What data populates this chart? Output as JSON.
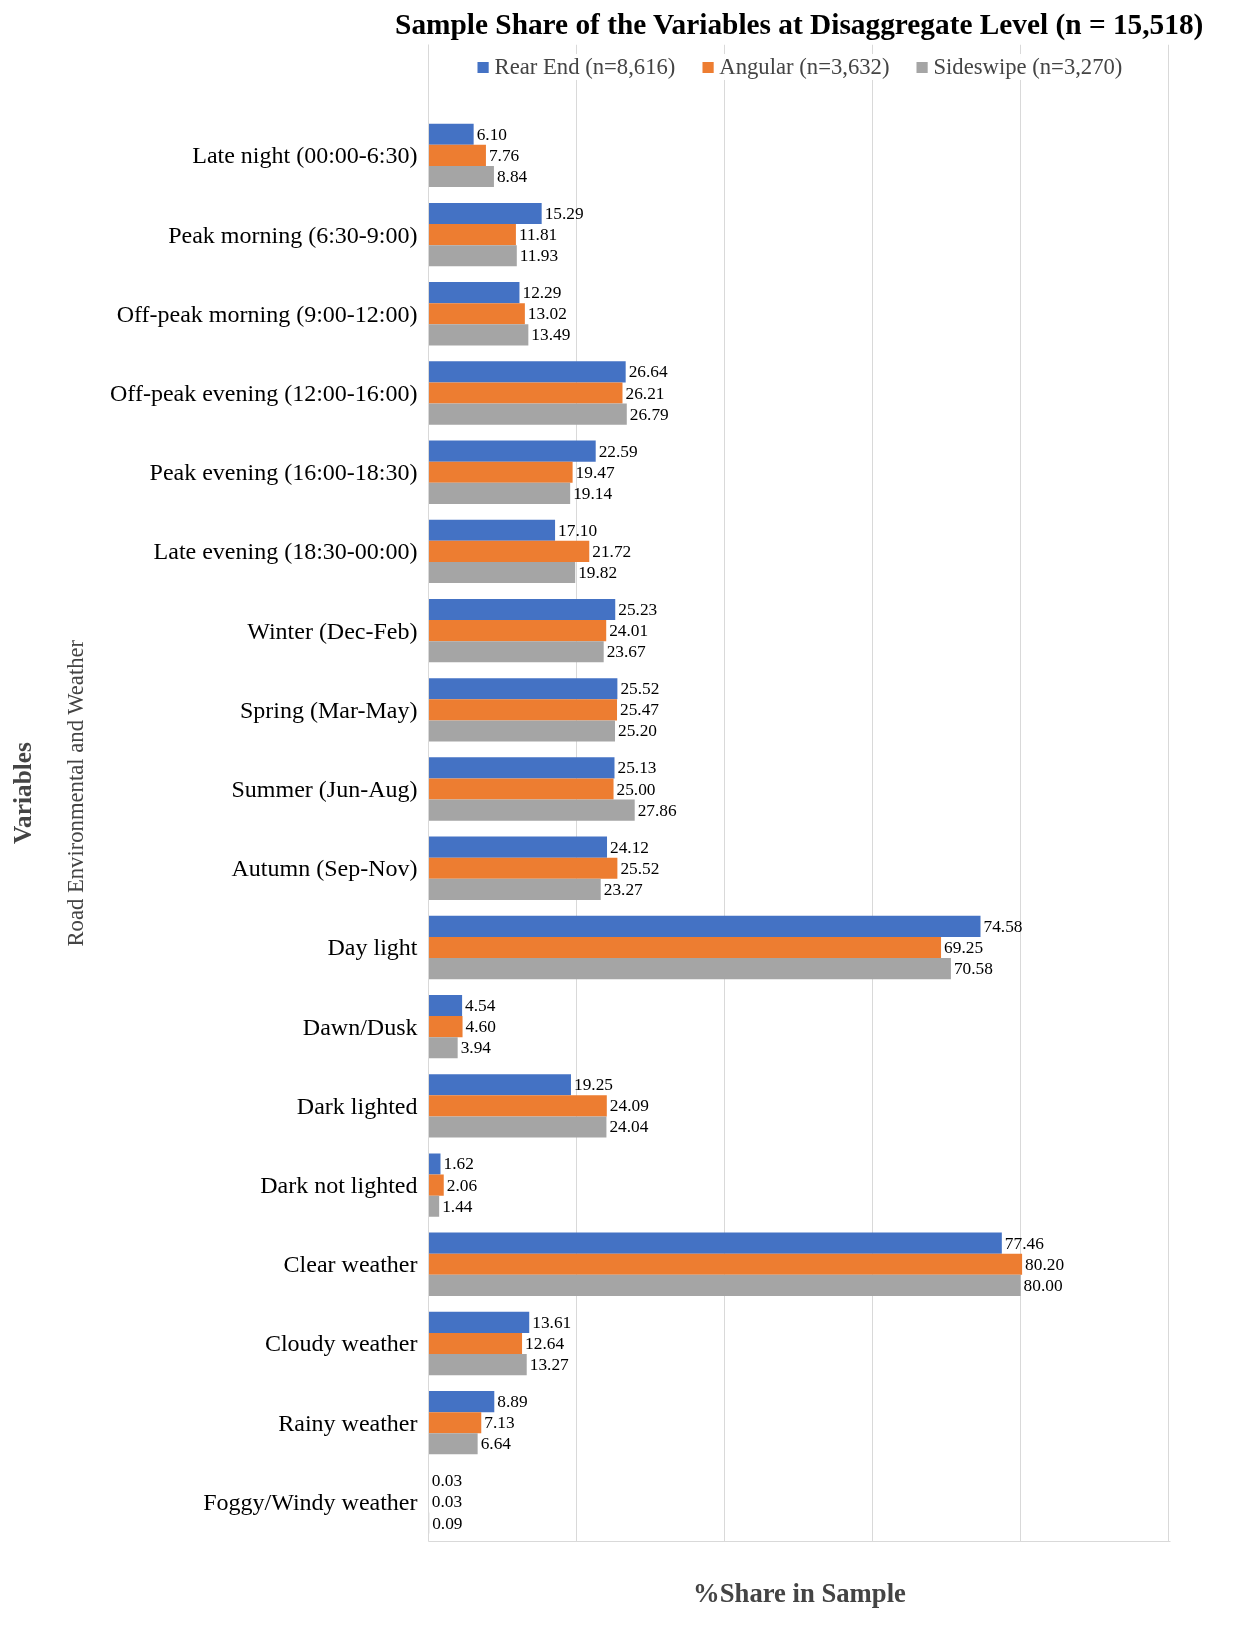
{
  "chart_data": {
    "type": "bar",
    "orientation": "horizontal",
    "title": "Sample Share of the Variables at Disaggregate Level (n = 15,518)",
    "xlabel": "%Share in Sample",
    "ylabel": "Variables",
    "annotations": [
      "Road Environmental and Weather"
    ],
    "categories": [
      "Late night (00:00-6:30)",
      "Peak morning (6:30-9:00)",
      "Off-peak morning (9:00-12:00)",
      "Off-peak evening (12:00-16:00)",
      "Peak evening (16:00-18:30)",
      "Late evening (18:30-00:00)",
      "Winter (Dec-Feb)",
      "Spring (Mar-May)",
      "Summer (Jun-Aug)",
      "Autumn (Sep-Nov)",
      "Day light",
      "Dawn/Dusk",
      "Dark lighted",
      "Dark not lighted",
      "Clear weather",
      "Cloudy weather",
      "Rainy weather",
      "Foggy/Windy weather"
    ],
    "series": [
      {
        "name": "Rear End (n=8,616)",
        "color": "#4472c4",
        "values": [
          6.1,
          15.29,
          12.29,
          26.64,
          22.59,
          17.1,
          25.23,
          25.52,
          25.13,
          24.12,
          74.58,
          4.54,
          19.25,
          1.62,
          77.46,
          13.61,
          8.89,
          0.03
        ],
        "value_labels": [
          "6.10",
          "15.29",
          "12.29",
          "26.64",
          "22.59",
          "17.10",
          "25.23",
          "25.52",
          "25.13",
          "24.12",
          "74.58",
          "4.54",
          "19.25",
          "1.62",
          "77.46",
          "13.61",
          "8.89",
          "0.03"
        ]
      },
      {
        "name": "Angular (n=3,632)",
        "color": "#ed7d31",
        "values": [
          7.76,
          11.81,
          13.02,
          26.21,
          19.47,
          21.72,
          24.01,
          25.47,
          25.0,
          25.52,
          69.25,
          4.6,
          24.09,
          2.06,
          80.2,
          12.64,
          7.13,
          0.03
        ],
        "value_labels": [
          "7.76",
          "11.81",
          "13.02",
          "26.21",
          "19.47",
          "21.72",
          "24.01",
          "25.47",
          "25.00",
          "25.52",
          "69.25",
          "4.60",
          "24.09",
          "2.06",
          "80.20",
          "12.64",
          "7.13",
          "0.03"
        ]
      },
      {
        "name": "Sideswipe (n=3,270)",
        "color": "#a5a5a5",
        "values": [
          8.84,
          11.93,
          13.49,
          26.79,
          19.14,
          19.82,
          23.67,
          25.2,
          27.86,
          23.27,
          70.58,
          3.94,
          24.04,
          1.44,
          80.0,
          13.27,
          6.64,
          0.09
        ],
        "value_labels": [
          "8.84",
          "11.93",
          "13.49",
          "26.79",
          "19.14",
          "19.82",
          "23.67",
          "25.20",
          "27.86",
          "23.27",
          "70.58",
          "3.94",
          "24.04",
          "1.44",
          "80.00",
          "13.27",
          "6.64",
          "0.09"
        ]
      }
    ],
    "grid": "x",
    "tick_labels": "y",
    "legend": "top"
  }
}
